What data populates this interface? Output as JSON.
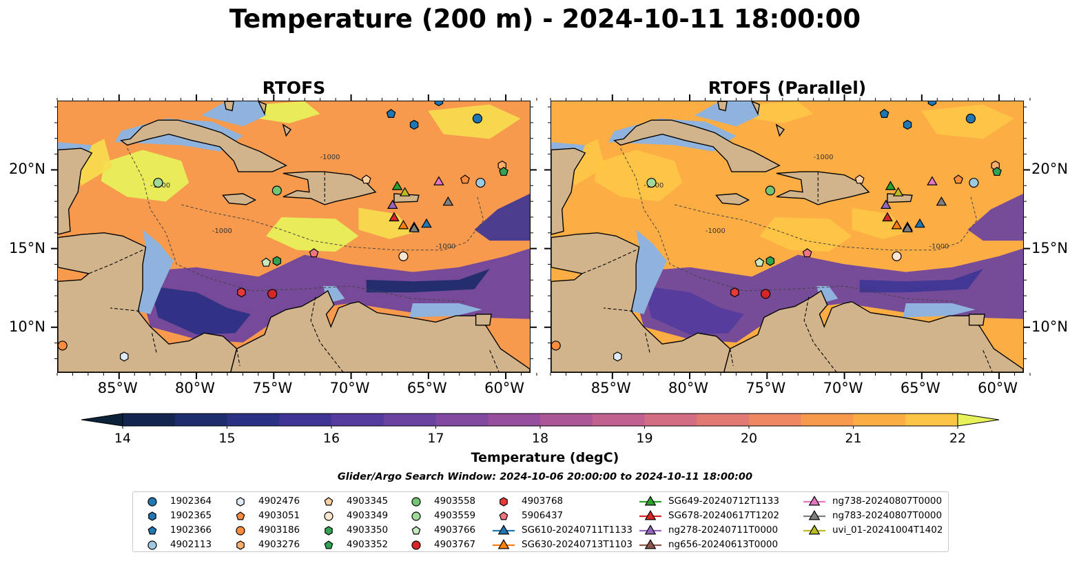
{
  "title": "Temperature (200 m) - 2024-10-11 18:00:00",
  "panels": [
    {
      "title": "RTOFS"
    },
    {
      "title": "RTOFS (Parallel)"
    }
  ],
  "lon_labels": [
    "85°W",
    "80°W",
    "75°W",
    "70°W",
    "65°W",
    "60°W"
  ],
  "lat_labels": [
    "20°N",
    "15°N",
    "10°N"
  ],
  "colorbar": {
    "title": "Temperature (degC)",
    "ticks": [
      "14",
      "15",
      "16",
      "17",
      "18",
      "19",
      "20",
      "21",
      "22"
    ],
    "colors": [
      "#0b2238",
      "#13254f",
      "#1d2d6b",
      "#2b3183",
      "#3e3595",
      "#543b9d",
      "#6a42a0",
      "#80499f",
      "#964f9c",
      "#ab5796",
      "#c06190",
      "#d36d84",
      "#e27a74",
      "#ef8862",
      "#f89a4e",
      "#fcae44",
      "#fdc545",
      "#f6dc4d",
      "#e7f25a"
    ]
  },
  "search_window": "Glider/Argo Search Window: 2024-10-06 20:00:00 to 2024-10-11 18:00:00",
  "contour_label": "-1000",
  "legend": {
    "items": [
      {
        "label": "1902364",
        "marker": "circle",
        "color": "#1f77b4"
      },
      {
        "label": "1902365",
        "marker": "hexagon",
        "color": "#1f77b4"
      },
      {
        "label": "1902366",
        "marker": "pentagon",
        "color": "#1f77b4"
      },
      {
        "label": "4902113",
        "marker": "circle",
        "color": "#9ecae1"
      },
      {
        "label": "4902476",
        "marker": "hexagon",
        "color": "#deebf7"
      },
      {
        "label": "4903051",
        "marker": "pentagon",
        "color": "#fd8d3c"
      },
      {
        "label": "4903186",
        "marker": "circle",
        "color": "#fd8d3c"
      },
      {
        "label": "4903276",
        "marker": "hexagon",
        "color": "#fdae6b"
      },
      {
        "label": "4903345",
        "marker": "pentagon",
        "color": "#fdd0a2"
      },
      {
        "label": "4903349",
        "marker": "circle",
        "color": "#fee6ce"
      },
      {
        "label": "4903350",
        "marker": "hexagon",
        "color": "#31a354"
      },
      {
        "label": "4903352",
        "marker": "pentagon",
        "color": "#31a354"
      },
      {
        "label": "4903558",
        "marker": "circle",
        "color": "#74c476"
      },
      {
        "label": "4903559",
        "marker": "circle",
        "color": "#a1d99b"
      },
      {
        "label": "4903766",
        "marker": "pentagon",
        "color": "#c7e9c0"
      },
      {
        "label": "4903767",
        "marker": "circle",
        "color": "#d62728"
      },
      {
        "label": "4903768",
        "marker": "hexagon",
        "color": "#e6393a"
      },
      {
        "label": "5906437",
        "marker": "pentagon",
        "color": "#f07583"
      },
      {
        "label": "SG610-20240711T1133",
        "marker": "triangle",
        "color": "#1f77b4"
      },
      {
        "label": "SG630-20240713T1103",
        "marker": "triangle",
        "color": "#ff7f0e"
      },
      {
        "label": "SG649-20240712T1133",
        "marker": "triangle",
        "color": "#2ca02c"
      },
      {
        "label": "SG678-20240617T1202",
        "marker": "triangle",
        "color": "#d62728"
      },
      {
        "label": "ng278-20240711T0000",
        "marker": "triangle",
        "color": "#9467bd"
      },
      {
        "label": "ng656-20240613T0000",
        "marker": "triangle",
        "color": "#8c564b"
      },
      {
        "label": "ng738-20240807T0000",
        "marker": "triangle",
        "color": "#e377c2"
      },
      {
        "label": "ng783-20240807T0000",
        "marker": "triangle",
        "color": "#7f7f7f"
      },
      {
        "label": "uvi_01-20241004T1402",
        "marker": "triangle",
        "color": "#bcbd22"
      }
    ]
  },
  "platforms": [
    {
      "id": "1902364",
      "lon": -61.8,
      "lat": 23.3
    },
    {
      "id": "1902365",
      "lon": -64.3,
      "lat": 24.4
    },
    {
      "id": "1902366",
      "lon": -67.4,
      "lat": 23.6
    },
    {
      "id": "1902365",
      "lon": -65.9,
      "lat": 22.9
    },
    {
      "id": "4902113",
      "lon": -61.6,
      "lat": 19.2
    },
    {
      "id": "4902476",
      "lon": -84.7,
      "lat": 8.1
    },
    {
      "id": "4903051",
      "lon": -62.6,
      "lat": 19.4
    },
    {
      "id": "4903186",
      "lon": -88.7,
      "lat": 8.8
    },
    {
      "id": "4903276",
      "lon": -60.2,
      "lat": 20.3
    },
    {
      "id": "4903345",
      "lon": -69.0,
      "lat": 19.4
    },
    {
      "id": "4903349",
      "lon": -66.6,
      "lat": 14.5
    },
    {
      "id": "4903350",
      "lon": -74.8,
      "lat": 14.2
    },
    {
      "id": "4903352",
      "lon": -60.1,
      "lat": 19.9
    },
    {
      "id": "4903558",
      "lon": -74.8,
      "lat": 18.7
    },
    {
      "id": "4903559",
      "lon": -82.5,
      "lat": 19.2
    },
    {
      "id": "4903766",
      "lon": -75.5,
      "lat": 14.1
    },
    {
      "id": "4903767",
      "lon": -75.1,
      "lat": 12.1
    },
    {
      "id": "4903768",
      "lon": -77.1,
      "lat": 12.2
    },
    {
      "id": "5906437",
      "lon": -72.4,
      "lat": 14.7
    },
    {
      "id": "SG610-20240711T1133",
      "lon": -65.1,
      "lat": 16.6
    },
    {
      "id": "SG630-20240713T1103",
      "lon": -66.6,
      "lat": 16.5
    },
    {
      "id": "SG649-20240712T1133",
      "lon": -67.0,
      "lat": 19.0
    },
    {
      "id": "SG678-20240617T1202",
      "lon": -67.2,
      "lat": 17.0
    },
    {
      "id": "ng278-20240711T0000",
      "lon": -67.3,
      "lat": 17.8
    },
    {
      "id": "ng656-20240613T0000",
      "lon": -65.9,
      "lat": 16.4
    },
    {
      "id": "ng738-20240807T0000",
      "lon": -64.3,
      "lat": 19.3
    },
    {
      "id": "ng783-20240807T0000",
      "lon": -63.7,
      "lat": 18.0
    },
    {
      "id": "ng783-20240807T0000",
      "lon": -65.9,
      "lat": 16.3
    },
    {
      "id": "uvi_01-20241004T1402",
      "lon": -66.5,
      "lat": 18.6
    }
  ]
}
